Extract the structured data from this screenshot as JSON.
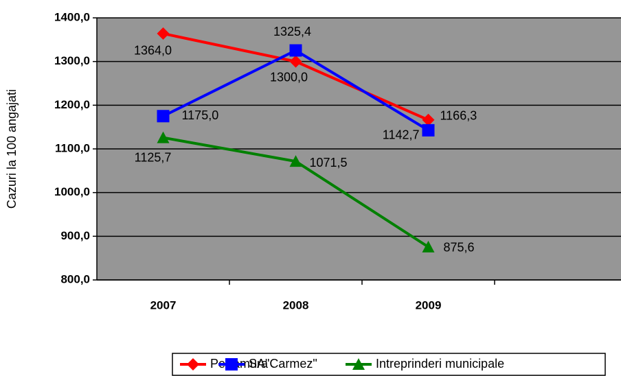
{
  "chart_data": {
    "type": "line",
    "y_label": "Cazuri la 100 angajati",
    "categories": [
      "2007",
      "2008",
      "2009",
      null
    ],
    "series": [
      {
        "name": "Pe ramura",
        "color": "#ff0000",
        "marker": "diamond",
        "values": [
          1364.0,
          1300.0,
          1166.3,
          null
        ],
        "value_labels": [
          "1364,0",
          "1300,0",
          "1166,3",
          null
        ]
      },
      {
        "name": "SA\"Carmez\"",
        "color": "#0000ff",
        "marker": "square",
        "values": [
          1175.0,
          1325.4,
          1142.7,
          null
        ],
        "value_labels": [
          "1175,0",
          "1325,4",
          "1142,7",
          null
        ]
      },
      {
        "name": "Intreprinderi municipale",
        "color": "#008000",
        "marker": "triangle",
        "values": [
          1125.7,
          1071.5,
          875.6,
          null
        ],
        "value_labels": [
          "1125,7",
          "1071,5",
          "875,6",
          null
        ]
      }
    ],
    "ylim": [
      800,
      1400
    ],
    "yticks": [
      {
        "value": 800,
        "label": "800,0"
      },
      {
        "value": 900,
        "label": "900,0"
      },
      {
        "value": 1000,
        "label": "1000,0"
      },
      {
        "value": 1100,
        "label": "1100,0"
      },
      {
        "value": 1200,
        "label": "1200,0"
      },
      {
        "value": 1300,
        "label": "1300,0"
      },
      {
        "value": 1400,
        "label": "1400,0"
      }
    ],
    "grid": true,
    "plot_background": "#969696",
    "legend": "bottom"
  }
}
